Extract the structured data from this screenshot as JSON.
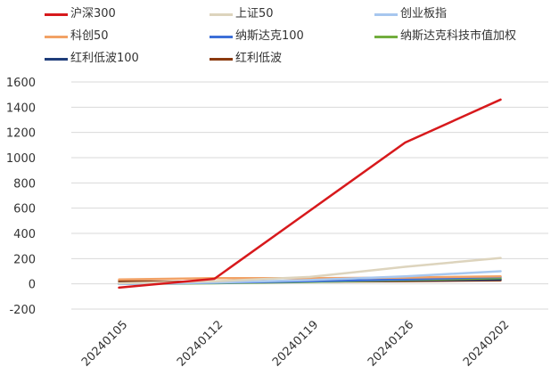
{
  "chart_data": {
    "type": "line",
    "title": "",
    "xlabel": "",
    "ylabel": "",
    "categories": [
      "20240105",
      "20240112",
      "20240119",
      "20240126",
      "20240202"
    ],
    "ylim": [
      -200,
      1600
    ],
    "yticks": [
      -200,
      0,
      200,
      400,
      600,
      800,
      1000,
      1200,
      1400,
      1600
    ],
    "grid": true,
    "legend": "top",
    "series": [
      {
        "name": "沪深300",
        "color": "#d7191c",
        "values": [
          -30,
          40,
          580,
          1120,
          1460
        ]
      },
      {
        "name": "上证50",
        "color": "#ddd4bd",
        "values": [
          5,
          20,
          55,
          135,
          205
        ]
      },
      {
        "name": "创业板指",
        "color": "#a7c7ef",
        "values": [
          0,
          10,
          30,
          60,
          100
        ]
      },
      {
        "name": "科创50",
        "color": "#f2a266",
        "values": [
          35,
          45,
          45,
          50,
          60
        ]
      },
      {
        "name": "纳斯达克100",
        "color": "#3d6fd8",
        "values": [
          0,
          8,
          20,
          35,
          55
        ]
      },
      {
        "name": "纳斯达克科技市值加权",
        "color": "#72ad3e",
        "values": [
          0,
          5,
          15,
          30,
          45
        ]
      },
      {
        "name": "红利低波100",
        "color": "#1f3d7a",
        "values": [
          5,
          10,
          20,
          28,
          35
        ]
      },
      {
        "name": "红利低波",
        "color": "#8b3a0f",
        "values": [
          20,
          15,
          18,
          22,
          28
        ]
      }
    ]
  }
}
